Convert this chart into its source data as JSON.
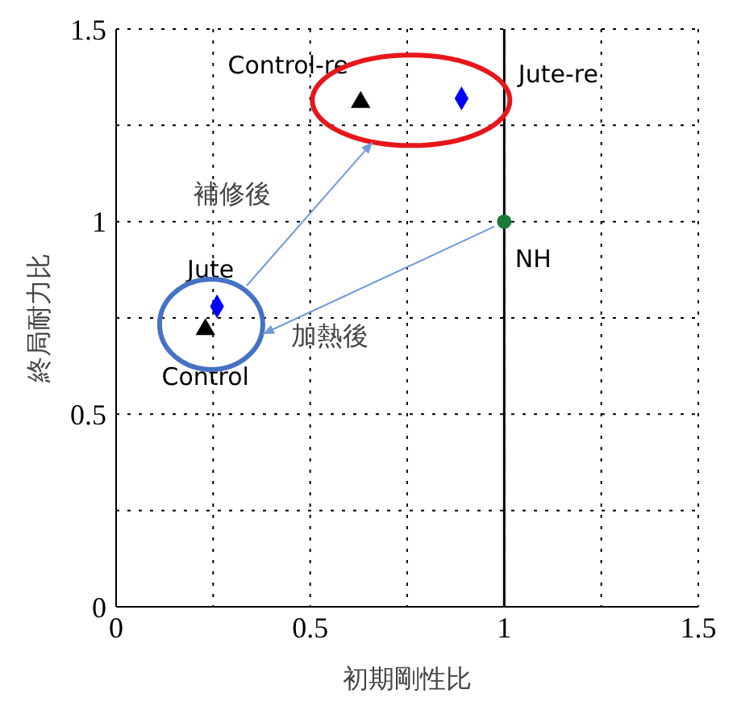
{
  "chart_data": {
    "type": "scatter",
    "xlabel": "初期剛性比",
    "ylabel": "終局耐力比",
    "xlim": [
      0,
      1.5
    ],
    "ylim": [
      0,
      1.5
    ],
    "xticks": [
      0,
      {
        "value": 0.25,
        "label": null
      },
      0.5,
      {
        "value": 0.75,
        "label": null
      },
      1,
      {
        "value": 1.25,
        "label": null
      },
      1.5
    ],
    "yticks": [
      0,
      {
        "value": 0.25,
        "label": null
      },
      0.5,
      {
        "value": 0.75,
        "label": null
      },
      1,
      {
        "value": 1.25,
        "label": null
      },
      1.5
    ],
    "grid": true,
    "legend": false,
    "ref_lines": [
      {
        "axis": "x",
        "value": 1,
        "color": "#000000",
        "line_style": "solid"
      }
    ],
    "annotations": [
      "補修後",
      "加熱後"
    ],
    "series": [
      {
        "name": "Control",
        "color": "#000000",
        "marker": "triangle",
        "x": [
          0.23
        ],
        "values": [
          0.72
        ]
      },
      {
        "name": "Jute",
        "color": "#0000ff",
        "marker": "diamond",
        "x": [
          0.26
        ],
        "values": [
          0.78
        ]
      },
      {
        "name": "Control-re",
        "color": "#000000",
        "marker": "triangle",
        "x": [
          0.63
        ],
        "values": [
          1.31
        ]
      },
      {
        "name": "Jute-re",
        "color": "#0000ff",
        "marker": "diamond",
        "x": [
          0.89
        ],
        "values": [
          1.32
        ]
      },
      {
        "name": "NH",
        "color": "#1a7a3a",
        "marker": "circle",
        "x": [
          1.0
        ],
        "values": [
          1.0
        ]
      }
    ]
  }
}
